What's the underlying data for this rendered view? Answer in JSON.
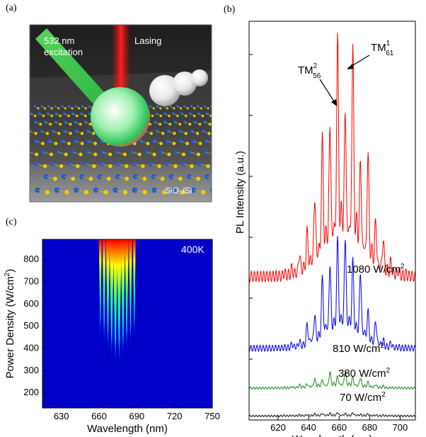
{
  "panel_a": {
    "label": "(a)",
    "excitation": [
      "532 nm",
      "excitation"
    ],
    "lasing": "Lasing",
    "substrate": "SiO₂/Si"
  },
  "panel_b": {
    "label": "(b)",
    "mode_labels": [
      {
        "base": "TM",
        "sup": "1",
        "sub": "61"
      },
      {
        "base": "TM",
        "sup": "2",
        "sub": "56"
      }
    ]
  },
  "panel_c": {
    "label": "(c)",
    "temperature": "400K"
  },
  "colors": {
    "red": "#ff0000",
    "blue": "#0000ee",
    "green": "#1a8a1a",
    "black": "#111111",
    "heatmap_bg": "#0000c8"
  },
  "chart_data": [
    {
      "type": "line",
      "panel": "(b)",
      "xlabel": "Wavelength (nm)",
      "ylabel": "PL Intensity (a.u.)",
      "xlim": [
        601,
        710
      ],
      "xticks": [
        620,
        640,
        660,
        680,
        700
      ],
      "y_ticks_labeled": false,
      "peak_wavelengths": [
        609,
        614,
        619,
        624,
        629,
        634,
        639,
        644,
        649,
        654,
        659,
        664,
        669,
        674,
        679,
        684,
        689,
        694,
        699,
        704
      ],
      "series": [
        {
          "name": "1080 W/cm²",
          "label_parts": [
            "1080 W/cm",
            "2"
          ],
          "color": "#ff0000",
          "baseline": 0.36,
          "amp": 0.57,
          "center": 663,
          "width": 19
        },
        {
          "name": "810 W/cm²",
          "label_parts": [
            "810 W/cm",
            "2"
          ],
          "color": "#0000ee",
          "baseline": 0.18,
          "amp": 0.28,
          "center": 662,
          "width": 18
        },
        {
          "name": "380 W/cm²",
          "label_parts": [
            "380 W/cm",
            "2"
          ],
          "color": "#1a8a1a",
          "baseline": 0.08,
          "amp": 0.04,
          "center": 660,
          "width": 20
        },
        {
          "name": "70 W/cm²",
          "label_parts": [
            "70 W/cm",
            "2"
          ],
          "color": "#111111",
          "baseline": 0.01,
          "amp": 0.008,
          "center": 660,
          "width": 25
        }
      ]
    },
    {
      "type": "heatmap",
      "panel": "(c)",
      "xlabel": "Wavelength (nm)",
      "ylabel_parts": [
        "Power Density (W/cm",
        "2",
        ")"
      ],
      "xlim": [
        615,
        750
      ],
      "ylim": [
        130,
        890
      ],
      "xticks": [
        630,
        660,
        690,
        720,
        750
      ],
      "yticks": [
        200,
        300,
        400,
        500,
        600,
        700,
        800
      ],
      "lasing_modes_nm": [
        661,
        664,
        667,
        670,
        673,
        676,
        679,
        682,
        685,
        688
      ],
      "threshold_W_cm2": 270
    }
  ]
}
